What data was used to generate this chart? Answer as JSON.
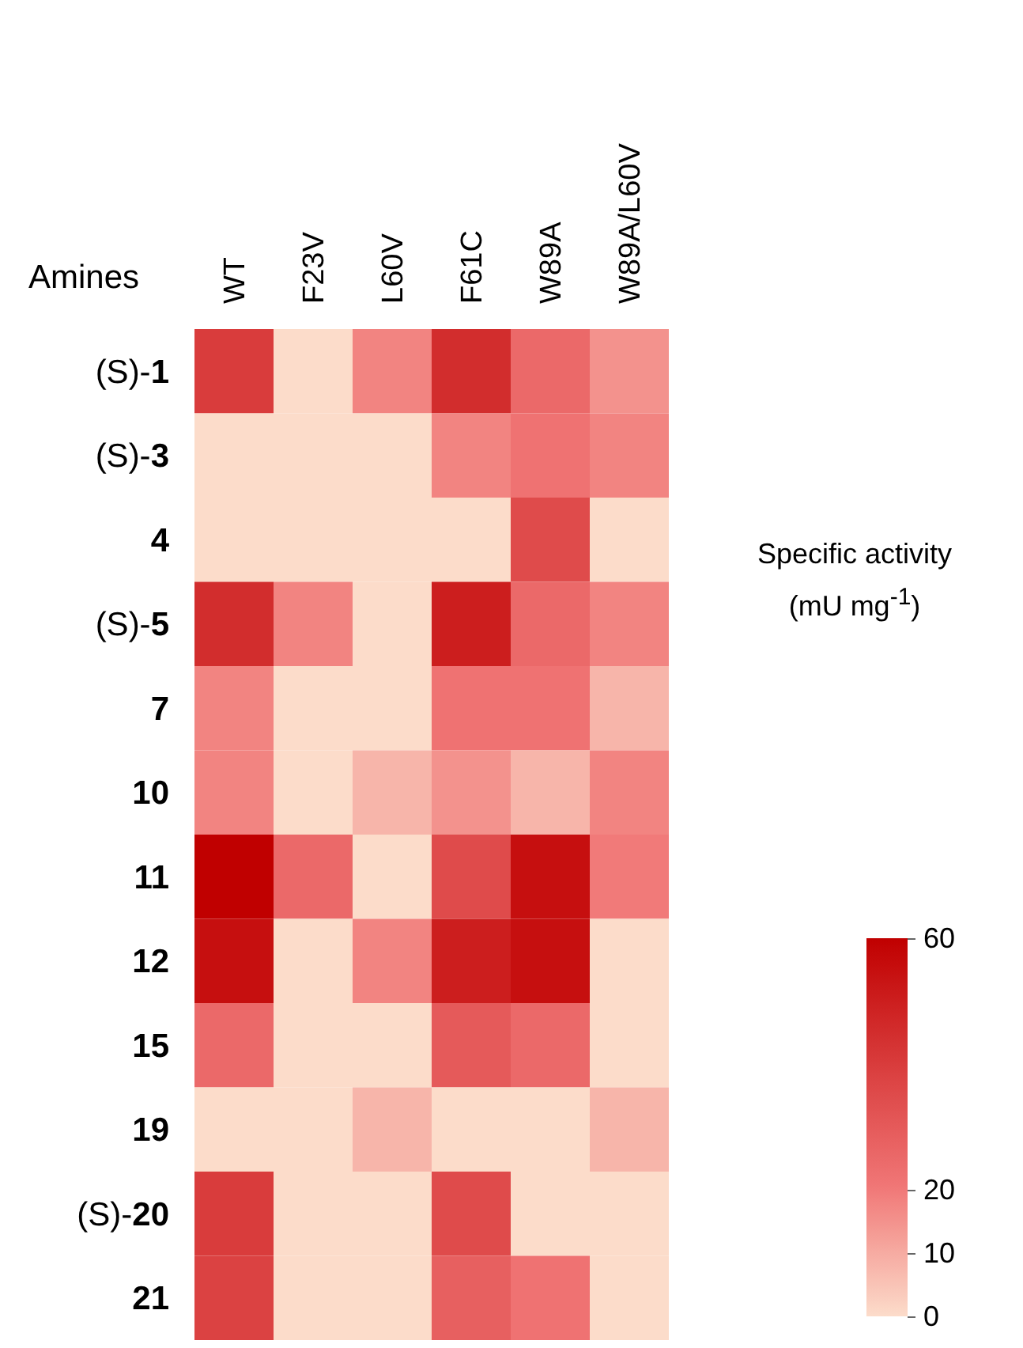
{
  "chart_data": {
    "type": "heatmap",
    "ylabel": "Amines",
    "clabel": "Specific activity (mU mg$^{-1}$)",
    "categories": [
      "WT",
      "F23V",
      "L60V",
      "F61C",
      "W89A",
      "W89A/L60V"
    ],
    "y_categories": [
      "(S)-1",
      "(S)-3",
      "4",
      "(S)-5",
      "7",
      "10",
      "11",
      "12",
      "15",
      "19",
      "(S)-20",
      "21"
    ],
    "cells": [
      [
        40,
        0,
        18,
        45,
        25,
        15
      ],
      [
        0,
        0,
        0,
        18,
        22,
        18
      ],
      [
        0,
        0,
        0,
        0,
        35,
        0
      ],
      [
        45,
        18,
        0,
        50,
        25,
        18
      ],
      [
        18,
        0,
        0,
        22,
        22,
        8
      ],
      [
        18,
        0,
        8,
        15,
        8,
        18
      ],
      [
        60,
        25,
        0,
        35,
        55,
        20
      ],
      [
        55,
        0,
        18,
        50,
        55,
        0
      ],
      [
        25,
        0,
        0,
        30,
        25,
        0
      ],
      [
        0,
        0,
        8,
        0,
        0,
        8
      ],
      [
        40,
        0,
        0,
        35,
        0,
        0
      ],
      [
        38,
        0,
        0,
        28,
        22,
        0
      ]
    ],
    "clim": [
      0,
      60
    ],
    "cticks": [
      {
        "value": 0,
        "label": "0"
      },
      {
        "value": 10,
        "label": "10"
      },
      {
        "value": 20,
        "label": "20"
      },
      {
        "value": 60,
        "label": "60"
      }
    ]
  }
}
